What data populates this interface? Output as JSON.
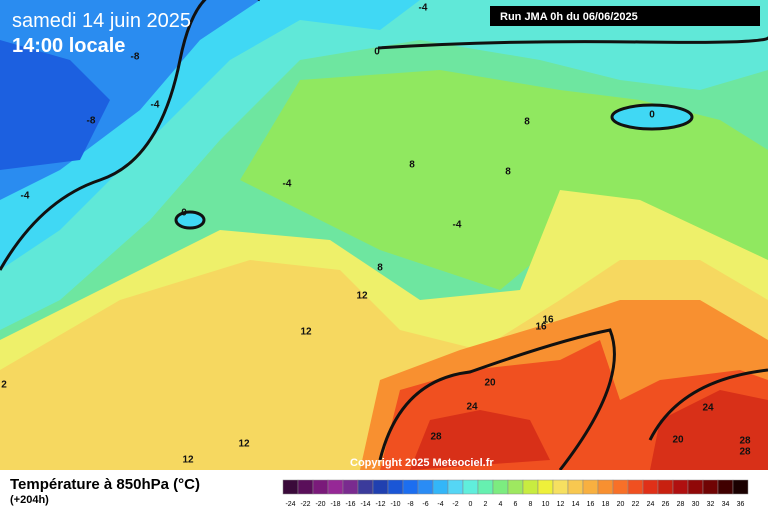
{
  "header": {
    "date": "samedi 14 juin 2025",
    "time": "14:00 locale",
    "run": "Run JMA 0h du 06/06/2025"
  },
  "copyright": "Copyright 2025 Meteociel.fr",
  "footer": {
    "title": "Température à 850hPa (°C)",
    "lead": "(+204h)"
  },
  "scale": {
    "labels": [
      -24,
      -22,
      -20,
      -18,
      -16,
      -14,
      -12,
      -10,
      -8,
      -6,
      -4,
      -2,
      0,
      2,
      4,
      6,
      8,
      10,
      12,
      14,
      16,
      18,
      20,
      22,
      24,
      26,
      28,
      30,
      32,
      34,
      36
    ],
    "colors": [
      "#3a0a3a",
      "#5a0f5a",
      "#7a1a7a",
      "#962896",
      "#7a2b8f",
      "#3b3b9b",
      "#2040b0",
      "#1a56d6",
      "#1c6ef0",
      "#2a8cf5",
      "#33b6f8",
      "#55d6f5",
      "#60eedc",
      "#66f0b0",
      "#7cec80",
      "#9ee860",
      "#c8ec40",
      "#eef03a",
      "#f6e060",
      "#f8c850",
      "#f8b040",
      "#f89030",
      "#f87028",
      "#f05020",
      "#e03018",
      "#c82010",
      "#b01010",
      "#900808",
      "#700404",
      "#400000",
      "#1a0000"
    ]
  },
  "contour_labels": [
    -4,
    0,
    -8,
    -4,
    -8,
    -4,
    0,
    -4,
    -4,
    8,
    0,
    8,
    8,
    8,
    12,
    12,
    16,
    16,
    20,
    24,
    28,
    24,
    20,
    28,
    28,
    12,
    12,
    2
  ]
}
